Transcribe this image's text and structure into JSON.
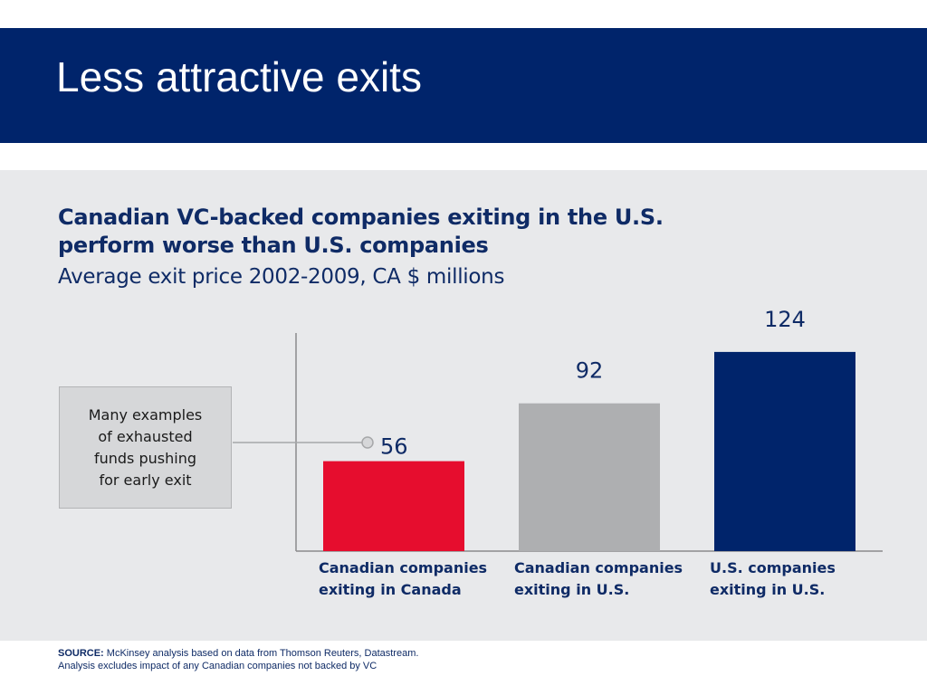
{
  "slide": {
    "title": "Less attractive exits"
  },
  "callout": {
    "text": "Many examples of exhausted funds pushing for early exit"
  },
  "footer": {
    "source_label": "SOURCE:",
    "source_text": " McKinsey analysis based on data from Thomson Reuters, Datastream.",
    "note": "Analysis excludes impact of any Canadian companies not backed by VC"
  },
  "chart_data": {
    "type": "bar",
    "title_line1": "Canadian VC-backed companies exiting in the U.S.",
    "title_line2": "perform worse than U.S. companies",
    "subtitle": "Average exit price 2002-2009, CA $ millions",
    "categories": [
      "Canadian companies exiting in Canada",
      "Canadian companies exiting in U.S.",
      "U.S. companies exiting in U.S."
    ],
    "values": [
      56,
      92,
      124
    ],
    "value_labels": [
      "56",
      "92",
      "124"
    ],
    "colors": [
      "#e60d2e",
      "#aeafb1",
      "#00246b"
    ],
    "ylim": [
      0,
      140
    ],
    "grid": false,
    "callout_target": "Canadian companies exiting in Canada"
  }
}
